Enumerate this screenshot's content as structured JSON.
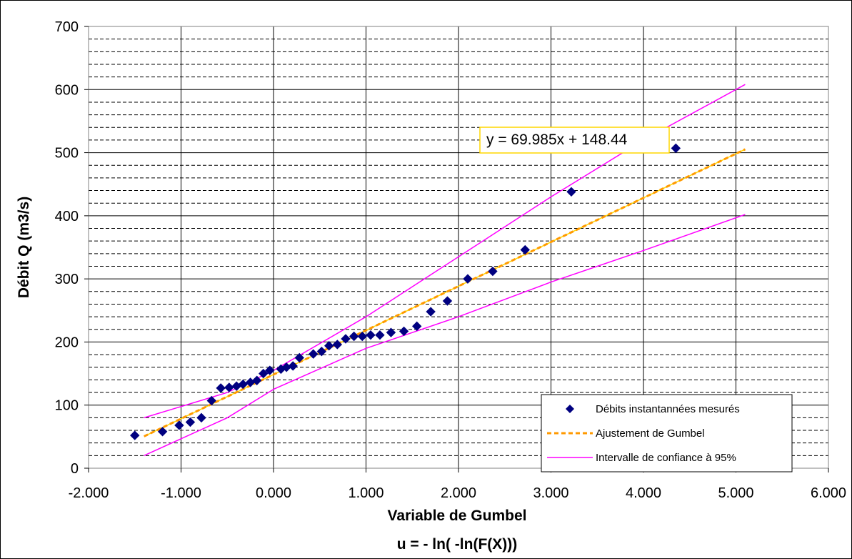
{
  "chart_data": {
    "type": "scatter",
    "xlabel": "Variable de Gumbel",
    "xlabel2": "u = - ln( -ln(F(X)))",
    "ylabel": "Débit Q (m3/s)",
    "xlim": [
      -2.0,
      6.0
    ],
    "ylim": [
      0,
      700
    ],
    "x_ticks": [
      -2,
      -1,
      0,
      1,
      2,
      3,
      4,
      5,
      6
    ],
    "x_tick_labels": [
      "-2.000",
      "-1.000",
      "0.000",
      "1.000",
      "2.000",
      "3.000",
      "4.000",
      "5.000",
      "6.000"
    ],
    "y_ticks": [
      0,
      100,
      200,
      300,
      400,
      500,
      600,
      700
    ],
    "y_tick_labels": [
      "0",
      "100",
      "200",
      "300",
      "400",
      "500",
      "600",
      "700"
    ],
    "y_minor_step": 20,
    "grid": true,
    "legend_position": "bottom-right",
    "equation_label": "y = 69.985x + 148.44",
    "series": [
      {
        "name": "Débits instantannées mesurés",
        "kind": "points",
        "marker": "diamond",
        "color": "#000080",
        "points": [
          [
            -1.5,
            52
          ],
          [
            -1.2,
            58
          ],
          [
            -1.02,
            68
          ],
          [
            -0.9,
            73
          ],
          [
            -0.78,
            80
          ],
          [
            -0.67,
            107
          ],
          [
            -0.57,
            127
          ],
          [
            -0.48,
            128
          ],
          [
            -0.4,
            130
          ],
          [
            -0.33,
            133
          ],
          [
            -0.25,
            136
          ],
          [
            -0.18,
            139
          ],
          [
            -0.11,
            150
          ],
          [
            -0.04,
            155
          ],
          [
            0.08,
            157
          ],
          [
            0.14,
            160
          ],
          [
            0.21,
            162
          ],
          [
            0.28,
            175
          ],
          [
            0.43,
            181
          ],
          [
            0.52,
            185
          ],
          [
            0.6,
            194
          ],
          [
            0.69,
            196
          ],
          [
            0.78,
            205
          ],
          [
            0.87,
            209
          ],
          [
            0.96,
            209
          ],
          [
            1.05,
            211
          ],
          [
            1.15,
            211
          ],
          [
            1.27,
            215
          ],
          [
            1.41,
            217
          ],
          [
            1.55,
            225
          ],
          [
            1.7,
            248
          ],
          [
            1.88,
            265
          ],
          [
            2.1,
            300
          ],
          [
            2.37,
            312
          ],
          [
            2.72,
            346
          ],
          [
            3.22,
            438
          ],
          [
            4.35,
            507
          ]
        ]
      },
      {
        "name": "Ajustement de Gumbel",
        "kind": "line",
        "style": "dashed",
        "color": "#FF9900",
        "x_range": [
          -1.4,
          5.1
        ],
        "slope": 69.985,
        "intercept": 148.44
      },
      {
        "name": "Intervalle de confiance à 95%",
        "kind": "band",
        "color": "#FF00FF",
        "upper": [
          [
            -1.4,
            80
          ],
          [
            -0.5,
            120
          ],
          [
            0.0,
            155
          ],
          [
            1.0,
            240
          ],
          [
            2.0,
            335
          ],
          [
            3.0,
            430
          ],
          [
            4.0,
            520
          ],
          [
            5.1,
            608
          ]
        ],
        "lower": [
          [
            -1.4,
            20
          ],
          [
            -0.5,
            80
          ],
          [
            0.0,
            125
          ],
          [
            1.0,
            190
          ],
          [
            2.0,
            240
          ],
          [
            3.0,
            295
          ],
          [
            4.0,
            345
          ],
          [
            5.1,
            402
          ]
        ]
      }
    ]
  }
}
